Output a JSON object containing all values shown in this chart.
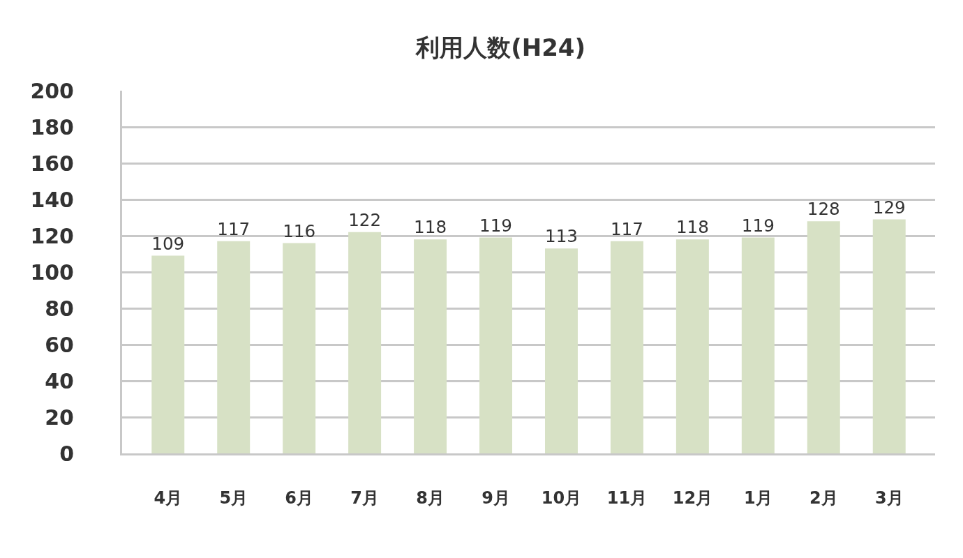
{
  "chart_data": {
    "type": "bar",
    "title": "利用人数(H24)",
    "categories": [
      "4月",
      "5月",
      "6月",
      "7月",
      "8月",
      "9月",
      "10月",
      "11月",
      "12月",
      "1月",
      "2月",
      "3月"
    ],
    "values": [
      109,
      117,
      116,
      122,
      118,
      119,
      113,
      117,
      118,
      119,
      128,
      129
    ],
    "color": "#d7e1c5",
    "ylim": [
      0,
      200
    ],
    "yticks": [
      0,
      20,
      40,
      60,
      80,
      100,
      120,
      140,
      160,
      180,
      200
    ],
    "grid": "y",
    "data_labels": true,
    "legend": false
  }
}
